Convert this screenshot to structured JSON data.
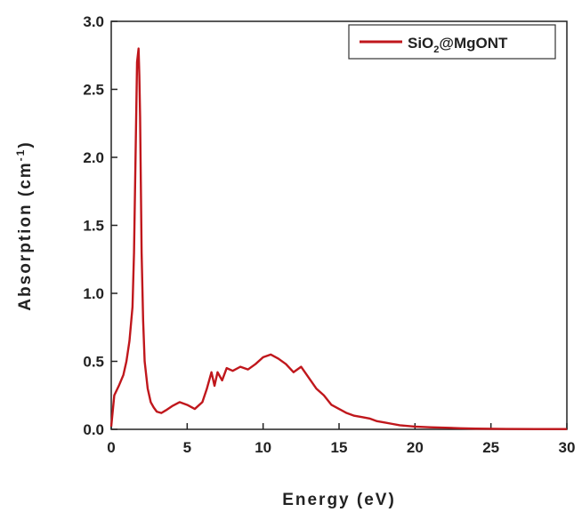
{
  "chart_data": {
    "type": "line",
    "xlabel": "Energy (eV)",
    "ylabel": "Absorption (cm",
    "ylabel_sup": "-1",
    "ylabel_close": ")",
    "xlim": [
      0,
      30
    ],
    "ylim": [
      0,
      3.0
    ],
    "x_ticks": [
      0,
      5,
      10,
      15,
      20,
      25,
      30
    ],
    "x_tick_labels": [
      "0",
      "5",
      "10",
      "15",
      "20",
      "25",
      "30"
    ],
    "y_ticks": [
      0,
      0.5,
      1.0,
      1.5,
      2.0,
      2.5,
      3.0
    ],
    "y_tick_labels": [
      "0.0",
      "0.5",
      "1.0",
      "1.5",
      "2.0",
      "2.5",
      "3.0"
    ],
    "grid": false,
    "legend_position": "top-right",
    "series": [
      {
        "name": "SiO2@MgONT",
        "name_main": "SiO",
        "name_sub": "2",
        "name_rest": "@MgONT",
        "color": "#c0171c",
        "x": [
          0.0,
          0.2,
          0.5,
          0.8,
          1.0,
          1.2,
          1.4,
          1.5,
          1.6,
          1.7,
          1.8,
          1.85,
          1.9,
          1.95,
          2.0,
          2.1,
          2.2,
          2.4,
          2.6,
          2.8,
          3.0,
          3.3,
          3.6,
          4.0,
          4.5,
          5.0,
          5.5,
          6.0,
          6.3,
          6.6,
          6.8,
          7.0,
          7.3,
          7.6,
          8.0,
          8.5,
          9.0,
          9.5,
          10.0,
          10.5,
          11.0,
          11.5,
          12.0,
          12.5,
          13.0,
          13.5,
          14.0,
          14.5,
          15.0,
          15.5,
          16.0,
          16.5,
          17.0,
          17.5,
          18.0,
          18.5,
          19.0,
          19.5,
          20.0,
          21.0,
          22.0,
          23.0,
          24.0,
          26.0,
          28.0,
          30.0
        ],
        "y": [
          0.02,
          0.25,
          0.32,
          0.4,
          0.5,
          0.65,
          0.9,
          1.3,
          2.0,
          2.7,
          2.8,
          2.6,
          2.3,
          1.8,
          1.3,
          0.8,
          0.5,
          0.3,
          0.2,
          0.16,
          0.13,
          0.12,
          0.14,
          0.17,
          0.2,
          0.18,
          0.15,
          0.2,
          0.3,
          0.42,
          0.32,
          0.42,
          0.36,
          0.45,
          0.43,
          0.46,
          0.44,
          0.48,
          0.53,
          0.55,
          0.52,
          0.48,
          0.42,
          0.46,
          0.38,
          0.3,
          0.25,
          0.18,
          0.15,
          0.12,
          0.1,
          0.09,
          0.08,
          0.06,
          0.05,
          0.04,
          0.03,
          0.025,
          0.02,
          0.015,
          0.012,
          0.008,
          0.005,
          0.003,
          0.002,
          0.002
        ]
      }
    ]
  }
}
